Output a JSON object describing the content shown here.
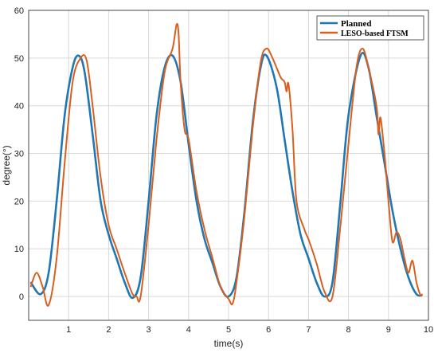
{
  "chart_data": {
    "type": "line",
    "title": "",
    "xlabel": "time(s)",
    "ylabel": "degree(°)",
    "xlim": [
      0,
      10
    ],
    "ylim": [
      -5,
      60
    ],
    "xticks": [
      1,
      2,
      3,
      4,
      5,
      6,
      7,
      8,
      9,
      10
    ],
    "yticks": [
      0,
      10,
      20,
      30,
      40,
      50,
      60
    ],
    "grid": true,
    "legend_position": "top-right",
    "series": [
      {
        "name": "Planned",
        "color": "#1f77b4",
        "x": [
          0.05,
          0.3,
          0.5,
          0.7,
          0.9,
          1.1,
          1.25,
          1.4,
          1.6,
          1.8,
          2.0,
          2.2,
          2.4,
          2.6,
          2.8,
          3.0,
          3.2,
          3.4,
          3.6,
          3.8,
          4.0,
          4.2,
          4.4,
          4.6,
          4.8,
          5.0,
          5.2,
          5.4,
          5.6,
          5.8,
          5.95,
          6.2,
          6.4,
          6.6,
          6.8,
          7.0,
          7.2,
          7.4,
          7.6,
          7.8,
          8.0,
          8.3,
          8.5,
          8.7,
          8.9,
          9.1,
          9.3,
          9.5,
          9.7,
          9.85
        ],
        "y": [
          3.0,
          0.5,
          5.0,
          20.0,
          38.0,
          48.0,
          50.5,
          47.0,
          34.0,
          20.0,
          13.0,
          8.0,
          3.0,
          -0.3,
          4.0,
          20.0,
          38.0,
          48.0,
          50.5,
          45.0,
          32.0,
          20.0,
          12.0,
          7.0,
          2.0,
          0.0,
          4.0,
          18.0,
          36.0,
          48.0,
          50.5,
          44.0,
          33.0,
          22.0,
          13.0,
          8.0,
          3.0,
          0.0,
          3.0,
          20.0,
          38.0,
          50.5,
          48.0,
          38.0,
          28.0,
          18.0,
          10.0,
          4.0,
          0.5,
          0.3
        ]
      },
      {
        "name": "LESO-based FTSM",
        "color": "#d95f1e",
        "x": [
          0.05,
          0.2,
          0.35,
          0.5,
          0.7,
          0.9,
          1.1,
          1.3,
          1.45,
          1.6,
          1.8,
          2.0,
          2.2,
          2.4,
          2.6,
          2.7,
          2.8,
          3.0,
          3.2,
          3.4,
          3.6,
          3.7,
          3.75,
          3.8,
          3.9,
          4.0,
          4.2,
          4.4,
          4.6,
          4.8,
          5.0,
          5.1,
          5.2,
          5.4,
          5.6,
          5.8,
          5.95,
          6.1,
          6.3,
          6.4,
          6.45,
          6.5,
          6.6,
          6.7,
          6.9,
          7.0,
          7.2,
          7.4,
          7.6,
          7.8,
          8.0,
          8.2,
          8.35,
          8.5,
          8.7,
          8.75,
          8.8,
          8.9,
          9.0,
          9.1,
          9.2,
          9.3,
          9.4,
          9.5,
          9.6,
          9.7,
          9.8,
          9.85
        ],
        "y": [
          2.0,
          5.0,
          2.0,
          -1.8,
          8.0,
          28.0,
          45.0,
          50.0,
          49.5,
          40.0,
          25.0,
          15.0,
          10.0,
          5.0,
          0.5,
          0.0,
          0.0,
          15.0,
          33.0,
          47.0,
          52.0,
          57.0,
          55.0,
          45.0,
          35.0,
          33.0,
          22.0,
          14.0,
          8.0,
          2.0,
          -0.5,
          -1.5,
          3.0,
          17.0,
          35.0,
          49.0,
          52.0,
          50.0,
          46.0,
          45.0,
          43.0,
          44.5,
          35.0,
          20.0,
          14.0,
          12.0,
          7.0,
          1.0,
          0.0,
          15.0,
          32.0,
          48.0,
          52.0,
          48.0,
          40.0,
          34.0,
          37.5,
          30.0,
          20.0,
          11.5,
          13.5,
          12.0,
          8.0,
          5.0,
          7.5,
          3.0,
          0.3,
          0.5
        ]
      }
    ]
  }
}
